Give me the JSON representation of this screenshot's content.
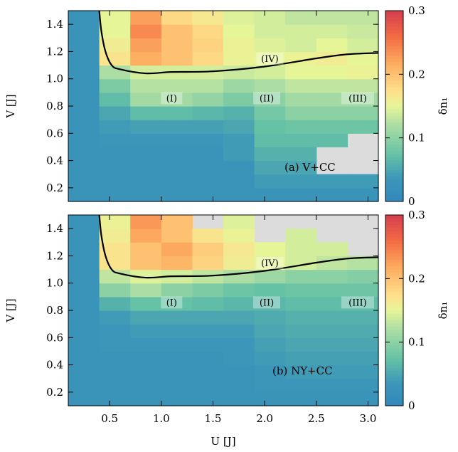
{
  "chart_data": [
    {
      "type": "heatmap",
      "panel_label": "(a) V+CC",
      "xlabel": "",
      "ylabel": "V [J]",
      "colorbar_label": "δn₁",
      "xlim": [
        0.1,
        3.1
      ],
      "ylim": [
        0.1,
        1.5
      ],
      "clim": [
        0,
        0.3
      ],
      "x_ticks": [
        0.5,
        1.0,
        1.5,
        2.0,
        2.5,
        3.0
      ],
      "x_tick_labels": [
        "0.5",
        "1.0",
        "1.5",
        "2.0",
        "2.5",
        "3.0"
      ],
      "y_ticks": [
        0.2,
        0.4,
        0.6,
        0.8,
        1.0,
        1.2,
        1.4
      ],
      "y_tick_labels": [
        "0.2",
        "0.4",
        "0.6",
        "0.8",
        "1.0",
        "1.2",
        "1.4"
      ],
      "colorbar_ticks": [
        0,
        0.1,
        0.2,
        0.3
      ],
      "colorbar_tick_labels": [
        "0",
        "0.1",
        "0.2",
        "0.3"
      ],
      "x_edges": [
        0.1,
        0.4,
        0.7,
        1.0,
        1.3,
        1.6,
        1.9,
        2.2,
        2.5,
        2.8,
        3.1
      ],
      "y_edges": [
        0.1,
        0.2,
        0.3,
        0.4,
        0.5,
        0.6,
        0.7,
        0.8,
        0.9,
        1.0,
        1.1,
        1.2,
        1.3,
        1.4,
        1.5
      ],
      "z": [
        [
          0.03,
          0.03,
          0.03,
          0.03,
          0.03,
          0.03,
          0.03,
          0.03,
          0.03,
          0.03
        ],
        [
          0.03,
          0.03,
          0.03,
          0.03,
          0.03,
          0.03,
          0.04,
          0.04,
          0.04,
          0.04
        ],
        [
          0.03,
          0.03,
          0.03,
          0.03,
          0.03,
          0.03,
          0.05,
          0.05,
          null,
          null
        ],
        [
          0.03,
          0.03,
          0.03,
          0.03,
          0.03,
          0.04,
          0.06,
          0.06,
          null,
          null
        ],
        [
          0.03,
          0.035,
          0.035,
          0.035,
          0.035,
          0.04,
          0.07,
          0.07,
          0.07,
          null
        ],
        [
          0.03,
          0.04,
          0.045,
          0.045,
          0.045,
          0.05,
          0.075,
          0.08,
          0.08,
          0.08
        ],
        [
          0.03,
          0.05,
          0.07,
          0.07,
          0.065,
          0.06,
          0.085,
          0.1,
          0.1,
          0.1
        ],
        [
          0.03,
          0.07,
          0.115,
          0.115,
          0.105,
          0.09,
          0.1,
          0.115,
          0.115,
          0.115
        ],
        [
          0.03,
          0.09,
          0.125,
          0.125,
          0.125,
          0.11,
          0.12,
          0.13,
          0.13,
          0.13
        ],
        [
          0.03,
          0.12,
          0.14,
          0.14,
          0.14,
          0.135,
          0.14,
          0.15,
          0.15,
          0.155
        ],
        [
          0.03,
          0.17,
          0.215,
          0.2,
          0.18,
          0.155,
          0.15,
          0.155,
          0.16,
          0.15
        ],
        [
          0.03,
          0.16,
          0.225,
          0.2,
          0.185,
          0.155,
          0.145,
          0.14,
          0.15,
          0.14
        ],
        [
          0.03,
          0.15,
          0.24,
          0.2,
          0.18,
          0.15,
          0.14,
          0.14,
          0.14,
          0.135
        ],
        [
          0.03,
          0.15,
          0.225,
          0.18,
          0.165,
          0.145,
          0.14,
          0.13,
          0.13,
          0.13
        ]
      ],
      "boundary": {
        "x": [
          0.4,
          0.42,
          0.46,
          0.52,
          0.6,
          0.85,
          1.1,
          1.5,
          2.0,
          2.5,
          2.8,
          3.1
        ],
        "y": [
          1.5,
          1.35,
          1.2,
          1.1,
          1.07,
          1.04,
          1.05,
          1.055,
          1.09,
          1.15,
          1.18,
          1.19
        ]
      },
      "regions": [
        {
          "label": "(I)",
          "x": 1.1,
          "y": 0.85
        },
        {
          "label": "(II)",
          "x": 2.02,
          "y": 0.85
        },
        {
          "label": "(III)",
          "x": 2.9,
          "y": 0.85
        },
        {
          "label": "(IV)",
          "x": 2.05,
          "y": 1.14
        }
      ]
    },
    {
      "type": "heatmap",
      "panel_label": "(b) NY+CC",
      "xlabel": "U [J]",
      "ylabel": "V [J]",
      "colorbar_label": "δn₁",
      "xlim": [
        0.1,
        3.1
      ],
      "ylim": [
        0.1,
        1.5
      ],
      "clim": [
        0,
        0.3
      ],
      "x_ticks": [
        0.5,
        1.0,
        1.5,
        2.0,
        2.5,
        3.0
      ],
      "x_tick_labels": [
        "0.5",
        "1.0",
        "1.5",
        "2.0",
        "2.5",
        "3.0"
      ],
      "y_ticks": [
        0.2,
        0.4,
        0.6,
        0.8,
        1.0,
        1.2,
        1.4
      ],
      "y_tick_labels": [
        "0.2",
        "0.4",
        "0.6",
        "0.8",
        "1.0",
        "1.2",
        "1.4"
      ],
      "colorbar_ticks": [
        0,
        0.1,
        0.2,
        0.3
      ],
      "colorbar_tick_labels": [
        "0",
        "0.1",
        "0.2",
        "0.3"
      ],
      "x_edges": [
        0.1,
        0.4,
        0.7,
        1.0,
        1.3,
        1.6,
        1.9,
        2.2,
        2.5,
        2.8,
        3.1
      ],
      "y_edges": [
        0.1,
        0.2,
        0.3,
        0.4,
        0.5,
        0.6,
        0.7,
        0.8,
        0.9,
        1.0,
        1.1,
        1.2,
        1.3,
        1.4,
        1.5
      ],
      "z": [
        [
          0.03,
          0.03,
          0.03,
          0.03,
          0.03,
          0.03,
          0.03,
          0.03,
          0.03,
          0.03
        ],
        [
          0.03,
          0.03,
          0.03,
          0.03,
          0.03,
          0.03,
          0.035,
          0.035,
          0.035,
          0.035
        ],
        [
          0.03,
          0.03,
          0.03,
          0.03,
          0.03,
          0.03,
          0.035,
          0.04,
          0.04,
          0.04
        ],
        [
          0.03,
          0.03,
          0.03,
          0.03,
          0.03,
          0.035,
          0.04,
          0.045,
          0.045,
          0.045
        ],
        [
          0.03,
          0.035,
          0.035,
          0.035,
          0.035,
          0.035,
          0.045,
          0.05,
          0.05,
          0.05
        ],
        [
          0.03,
          0.035,
          0.04,
          0.04,
          0.04,
          0.04,
          0.05,
          0.055,
          0.055,
          0.055
        ],
        [
          0.03,
          0.04,
          0.05,
          0.05,
          0.05,
          0.05,
          0.055,
          0.06,
          0.06,
          0.06
        ],
        [
          0.03,
          0.06,
          0.075,
          0.075,
          0.07,
          0.065,
          0.065,
          0.07,
          0.07,
          0.07
        ],
        [
          0.03,
          0.1,
          0.12,
          0.1,
          0.09,
          0.08,
          0.075,
          0.08,
          0.08,
          0.08
        ],
        [
          0.03,
          0.13,
          0.145,
          0.14,
          0.13,
          0.12,
          0.11,
          0.1,
          0.1,
          0.095
        ],
        [
          0.03,
          0.17,
          0.2,
          0.21,
          0.185,
          0.16,
          0.15,
          0.14,
          0.13,
          0.125
        ],
        [
          0.03,
          0.17,
          0.2,
          0.22,
          0.19,
          0.165,
          0.15,
          0.14,
          0.14,
          null
        ],
        [
          0.03,
          0.16,
          0.22,
          0.2,
          0.17,
          0.155,
          null,
          0.14,
          null,
          null
        ],
        [
          0.03,
          0.155,
          0.23,
          0.2,
          null,
          0.145,
          null,
          null,
          null,
          null
        ]
      ],
      "boundary": {
        "x": [
          0.4,
          0.42,
          0.46,
          0.52,
          0.6,
          0.85,
          1.1,
          1.5,
          2.0,
          2.5,
          2.8,
          3.1
        ],
        "y": [
          1.5,
          1.35,
          1.2,
          1.1,
          1.07,
          1.04,
          1.05,
          1.055,
          1.09,
          1.15,
          1.18,
          1.19
        ]
      },
      "regions": [
        {
          "label": "(I)",
          "x": 1.1,
          "y": 0.85
        },
        {
          "label": "(II)",
          "x": 2.02,
          "y": 0.85
        },
        {
          "label": "(III)",
          "x": 2.9,
          "y": 0.85
        },
        {
          "label": "(IV)",
          "x": 2.05,
          "y": 1.14
        }
      ]
    }
  ]
}
